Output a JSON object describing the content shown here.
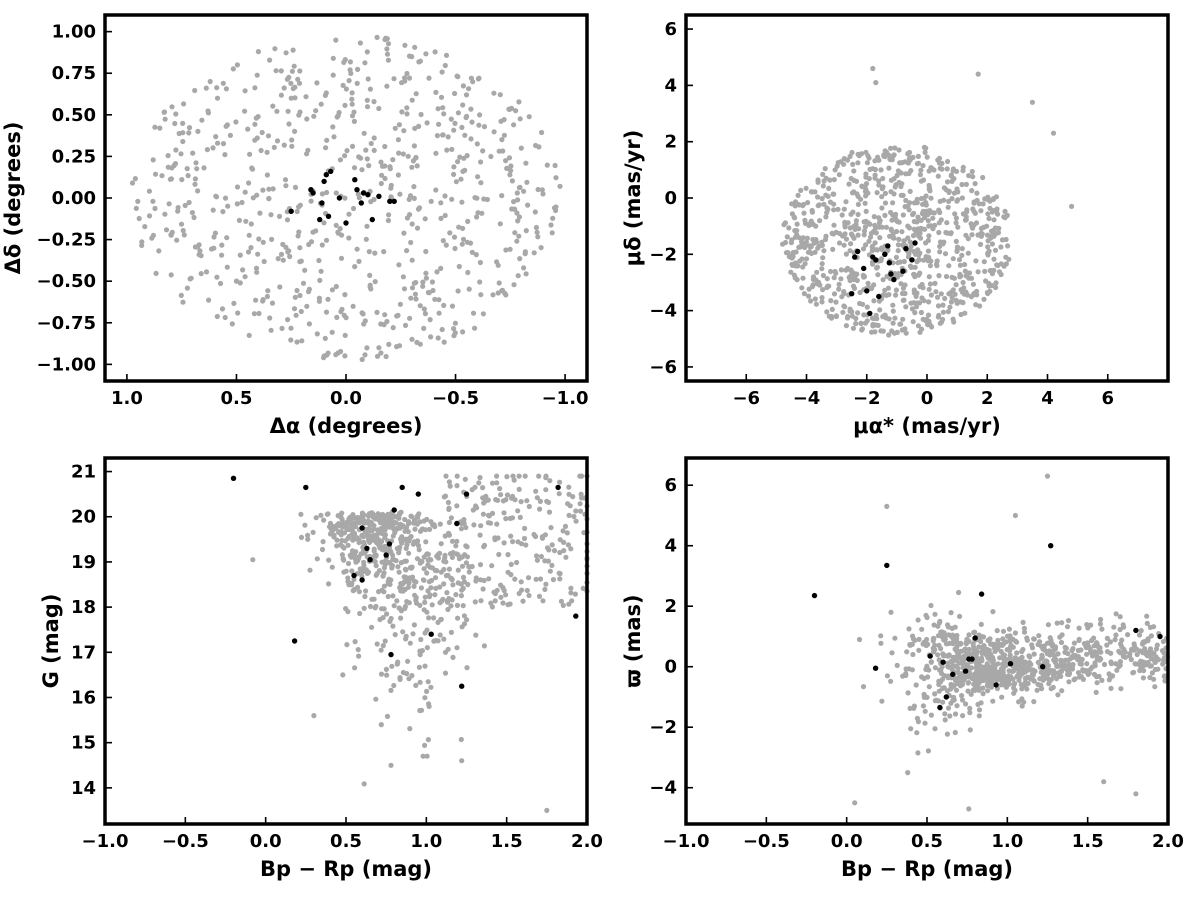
{
  "chart_data": [
    {
      "type": "scatter",
      "panel": "top-left",
      "xlabel": "Δα (degrees)",
      "ylabel": "Δδ (degrees)",
      "xlim": [
        1.1,
        -1.1
      ],
      "ylim": [
        -1.1,
        1.1
      ],
      "x_inverted": true,
      "xticks": [
        1.0,
        0.5,
        0.0,
        -0.5,
        -1.0
      ],
      "xtick_labels": [
        "1.0",
        "0.5",
        "0.0",
        "−0.5",
        "−1.0"
      ],
      "yticks": [
        1.0,
        0.75,
        0.5,
        0.25,
        0.0,
        -0.25,
        -0.5,
        -0.75,
        -1.0
      ],
      "ytick_labels": [
        "1.00",
        "0.75",
        "0.50",
        "0.25",
        "0.00",
        "−0.25",
        "−0.50",
        "−0.75",
        "−1.00"
      ],
      "grid": false,
      "series": [
        {
          "color": "#a8a8a8",
          "distribution": {
            "kind": "disk",
            "count": 720,
            "center": [
              0,
              0
            ],
            "radius": [
              0.98,
              0.98
            ],
            "seed": 11
          },
          "x": [
            0.85,
            0.62,
            0.4,
            0.25,
            -0.3,
            -0.55,
            -0.8,
            0.1,
            -0.15,
            0.5
          ],
          "y": [
            0.42,
            0.7,
            0.88,
            0.6,
            0.85,
            0.62,
            0.3,
            -0.95,
            -0.9,
            -0.5
          ]
        },
        {
          "color": "#000000",
          "x": [
            0.16,
            0.12,
            0.07,
            0.1,
            0.15,
            0.03,
            -0.04,
            -0.05,
            -0.08,
            -0.1,
            -0.12,
            -0.15,
            -0.2,
            -0.22,
            0.0,
            0.08,
            0.25,
            0.09,
            0.11,
            -0.07
          ],
          "y": [
            0.05,
            -0.13,
            0.16,
            0.1,
            0.03,
            0.0,
            0.11,
            0.05,
            0.03,
            0.02,
            -0.13,
            0.01,
            -0.02,
            -0.02,
            -0.15,
            -0.11,
            -0.08,
            0.14,
            -0.03,
            -0.03
          ]
        }
      ]
    },
    {
      "type": "scatter",
      "panel": "top-right",
      "xlabel": "μα* (mas/yr)",
      "ylabel": "μδ (mas/yr)",
      "xlim": [
        -8,
        8
      ],
      "ylim": [
        -6.5,
        6.5
      ],
      "xticks": [
        -6,
        -4,
        -2,
        0,
        2,
        4,
        6
      ],
      "xtick_labels": [
        "−6",
        "−4",
        "−2",
        "0",
        "2",
        "4",
        "6"
      ],
      "yticks": [
        -6,
        -4,
        -2,
        0,
        2,
        4,
        6
      ],
      "ytick_labels": [
        "−6",
        "−4",
        "−2",
        "0",
        "2",
        "4",
        "6"
      ],
      "grid": false,
      "series": [
        {
          "color": "#a8a8a8",
          "distribution": {
            "kind": "disk",
            "count": 900,
            "center": [
              -1.0,
              -1.5
            ],
            "radius": [
              3.8,
              3.4
            ],
            "clip_y": [
              -4.9,
              4.7
            ],
            "seed": 23
          },
          "x": [
            4.2,
            4.8,
            3.5,
            -1.8,
            -1.7,
            1.7
          ],
          "y": [
            2.3,
            -0.3,
            3.4,
            4.6,
            4.1,
            4.4
          ]
        },
        {
          "color": "#000000",
          "x": [
            -2.3,
            -2.4,
            -2.1,
            -2.0,
            -1.9,
            -1.8,
            -1.6,
            -1.3,
            -1.25,
            -1.2,
            -1.1,
            -0.8,
            -0.7,
            -0.5,
            -0.4,
            -1.7,
            -1.4,
            -2.5
          ],
          "y": [
            -1.9,
            -2.1,
            -2.5,
            -3.3,
            -4.1,
            -2.1,
            -3.5,
            -1.7,
            -2.3,
            -2.7,
            -2.9,
            -2.6,
            -1.8,
            -2.2,
            -1.6,
            -2.2,
            -2.0,
            -3.4
          ]
        }
      ]
    },
    {
      "type": "scatter",
      "panel": "bottom-left",
      "xlabel": "Bp − Rp (mag)",
      "ylabel": "G (mag)",
      "xlim": [
        -1.0,
        2.0
      ],
      "ylim": [
        13.2,
        21.3
      ],
      "xticks": [
        -1.0,
        -0.5,
        0.0,
        0.5,
        1.0,
        1.5,
        2.0
      ],
      "xtick_labels": [
        "−1.0",
        "−0.5",
        "0.0",
        "0.5",
        "1.0",
        "1.5",
        "2.0"
      ],
      "yticks": [
        14,
        15,
        16,
        17,
        18,
        19,
        20,
        21
      ],
      "ytick_labels": [
        "14",
        "15",
        "16",
        "17",
        "18",
        "19",
        "20",
        "21"
      ],
      "grid": false,
      "series": [
        {
          "color": "#a8a8a8",
          "distribution": {
            "kind": "cmd",
            "count": 850,
            "seed": 37
          },
          "x": [
            -0.08,
            0.3,
            0.48,
            0.78,
            0.98,
            1.22,
            1.75,
            0.72
          ],
          "y": [
            19.05,
            15.6,
            16.5,
            14.5,
            14.7,
            14.6,
            13.5,
            15.4
          ]
        },
        {
          "color": "#000000",
          "x": [
            -0.2,
            0.25,
            0.18,
            0.6,
            0.63,
            0.65,
            0.55,
            0.6,
            0.75,
            0.77,
            0.78,
            0.8,
            0.85,
            0.95,
            1.03,
            1.19,
            1.22,
            1.25,
            1.82,
            1.93
          ],
          "y": [
            20.85,
            20.65,
            17.25,
            19.75,
            19.3,
            19.05,
            18.7,
            18.6,
            19.15,
            19.4,
            16.95,
            20.15,
            20.65,
            20.5,
            17.4,
            19.85,
            16.25,
            20.5,
            20.65,
            17.8
          ]
        }
      ]
    },
    {
      "type": "scatter",
      "panel": "bottom-right",
      "xlabel": "Bp − Rp (mag)",
      "ylabel": "ϖ (mas)",
      "xlim": [
        -1.0,
        2.0
      ],
      "ylim": [
        -5.2,
        6.9
      ],
      "xticks": [
        -1.0,
        -0.5,
        0.0,
        0.5,
        1.0,
        1.5,
        2.0
      ],
      "xtick_labels": [
        "−1.0",
        "−0.5",
        "0.0",
        "0.5",
        "1.0",
        "1.5",
        "2.0"
      ],
      "yticks": [
        -4,
        -2,
        0,
        2,
        4,
        6
      ],
      "ytick_labels": [
        "−4",
        "−2",
        "0",
        "2",
        "4",
        "6"
      ],
      "grid": false,
      "series": [
        {
          "color": "#a8a8a8",
          "distribution": {
            "kind": "plx",
            "count": 900,
            "seed": 53
          },
          "x": [
            0.05,
            0.08,
            0.25,
            1.25,
            1.05,
            0.76,
            0.38,
            1.6,
            1.8
          ],
          "y": [
            -4.5,
            0.9,
            5.3,
            6.3,
            5.0,
            -4.7,
            -3.5,
            -3.8,
            -4.2
          ]
        },
        {
          "color": "#000000",
          "x": [
            -0.2,
            0.18,
            0.25,
            0.52,
            0.58,
            0.6,
            0.62,
            0.66,
            0.74,
            0.76,
            0.78,
            0.8,
            0.84,
            0.93,
            1.02,
            1.22,
            1.27,
            1.8,
            1.95
          ],
          "y": [
            2.35,
            -0.05,
            3.35,
            0.35,
            -1.35,
            0.15,
            -1.0,
            -0.25,
            -0.15,
            0.25,
            0.25,
            0.95,
            2.4,
            -0.6,
            0.1,
            0.0,
            4.0,
            1.2,
            1.0
          ]
        }
      ]
    }
  ]
}
